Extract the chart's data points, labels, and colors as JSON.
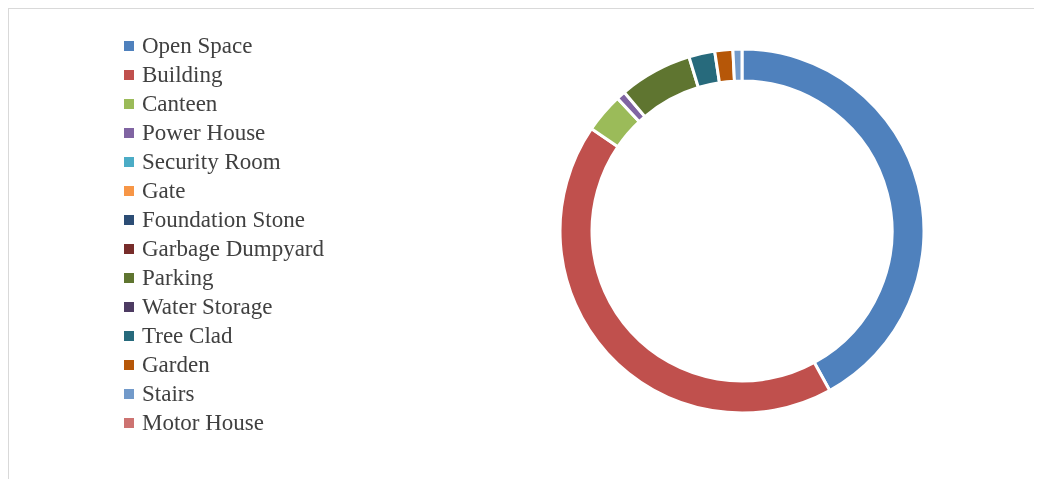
{
  "chart_data": {
    "type": "donut",
    "categories": [
      "Open Space",
      "Building",
      "Canteen",
      "Power House",
      "Security Room",
      "Gate",
      "Foundation Stone",
      "Garbage Dumpyard",
      "Parking",
      "Water Storage",
      "Tree Clad",
      "Garden",
      "Stairs",
      "Motor House"
    ],
    "values": [
      42,
      42.5,
      3.5,
      0.8,
      0,
      0,
      0,
      0,
      6.5,
      0,
      2.3,
      1.6,
      0.8,
      0
    ],
    "colors": [
      "#4f81bd",
      "#c0504d",
      "#9bbb59",
      "#8064a2",
      "#4bacc6",
      "#f79646",
      "#2c4d75",
      "#772c2a",
      "#5f7530",
      "#4d3b62",
      "#276a7c",
      "#b65708",
      "#729aca",
      "#cd7371"
    ],
    "legend": "left"
  }
}
